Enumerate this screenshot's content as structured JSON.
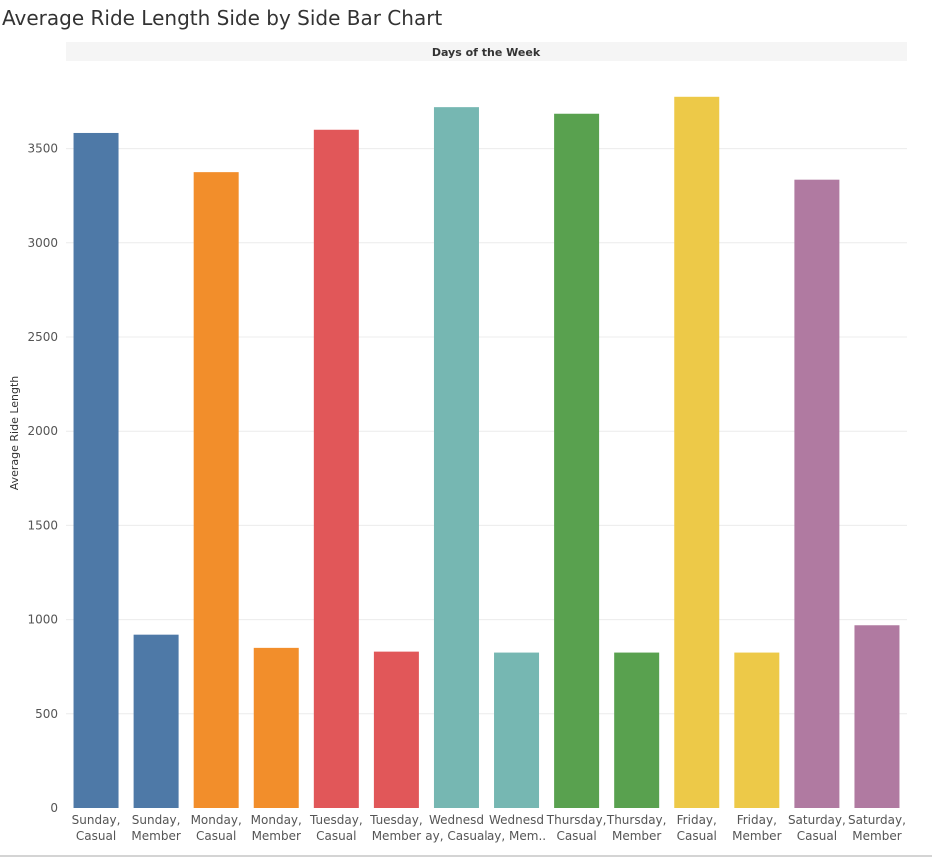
{
  "chart_data": {
    "type": "bar",
    "title": "Average Ride Length Side by Side Bar Chart",
    "column_header": "Days of the Week",
    "ylabel": "Average Ride Length",
    "ylim": [
      0,
      3900
    ],
    "yticks": [
      0,
      500,
      1000,
      1500,
      2000,
      2500,
      3000,
      3500
    ],
    "grid": true,
    "categories": [
      [
        "Sunday,",
        "Casual"
      ],
      [
        "Sunday,",
        "Member"
      ],
      [
        "Monday,",
        "Casual"
      ],
      [
        "Monday,",
        "Member"
      ],
      [
        "Tuesday,",
        "Casual"
      ],
      [
        "Tuesday,",
        "Member"
      ],
      [
        "Wednesd",
        "ay, Casual"
      ],
      [
        "Wednesd",
        "ay, Mem.."
      ],
      [
        "Thursday,",
        "Casual"
      ],
      [
        "Thursday,",
        "Member"
      ],
      [
        "Friday,",
        "Casual"
      ],
      [
        "Friday,",
        "Member"
      ],
      [
        "Saturday,",
        "Casual"
      ],
      [
        "Saturday,",
        "Member"
      ]
    ],
    "values": [
      3583,
      920,
      3375,
      850,
      3600,
      830,
      3720,
      825,
      3685,
      825,
      3775,
      825,
      3335,
      970
    ],
    "colors": [
      "#4e79a7",
      "#4e79a7",
      "#f28e2b",
      "#f28e2b",
      "#e15759",
      "#e15759",
      "#76b7b2",
      "#76b7b2",
      "#59a14f",
      "#59a14f",
      "#edc948",
      "#edc948",
      "#b07aa1",
      "#b07aa1"
    ]
  }
}
